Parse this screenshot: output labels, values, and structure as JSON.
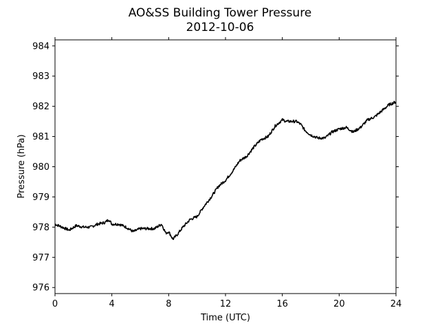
{
  "chart_data": {
    "type": "line",
    "title": "AO&SS Building Tower Pressure",
    "subtitle": "2012-10-06",
    "xlabel": "Time (UTC)",
    "ylabel": "Pressure (hPa)",
    "xlim": [
      0,
      24
    ],
    "ylim": [
      975.8,
      984.2
    ],
    "x_ticks": [
      0,
      4,
      8,
      12,
      16,
      20,
      24
    ],
    "y_ticks": [
      976,
      977,
      978,
      979,
      980,
      981,
      982,
      983,
      984
    ],
    "grid": false,
    "legend": "none",
    "line_color": "#000000",
    "series": [
      {
        "x": [
          0,
          0.5,
          1,
          1.5,
          2,
          2.5,
          3,
          3.5,
          3.8,
          4,
          4.5,
          5,
          5.5,
          6,
          6.5,
          7,
          7.5,
          7.8,
          8,
          8.3,
          8.6,
          9,
          9.5,
          10,
          10.5,
          11,
          11.5,
          12,
          12.5,
          13,
          13.5,
          14,
          14.5,
          15,
          15.5,
          16,
          16.3,
          16.6,
          17,
          17.3,
          17.6,
          18,
          18.5,
          19,
          19.5,
          20,
          20.5,
          21,
          21.5,
          22,
          22.5,
          23,
          23.5,
          24
        ],
        "y": [
          978.1,
          978.0,
          977.9,
          978.05,
          978.0,
          978.0,
          978.1,
          978.15,
          978.25,
          978.1,
          978.1,
          978.0,
          977.85,
          977.95,
          977.95,
          977.95,
          978.1,
          977.8,
          977.85,
          977.6,
          977.75,
          978.0,
          978.25,
          978.35,
          978.7,
          979.0,
          979.35,
          979.55,
          979.85,
          980.2,
          980.35,
          980.65,
          980.9,
          981.0,
          981.35,
          981.55,
          981.5,
          981.5,
          981.5,
          981.4,
          981.2,
          981.05,
          980.95,
          980.95,
          981.15,
          981.25,
          981.3,
          981.15,
          981.3,
          981.55,
          981.65,
          981.85,
          982.05,
          982.15
        ]
      }
    ]
  }
}
